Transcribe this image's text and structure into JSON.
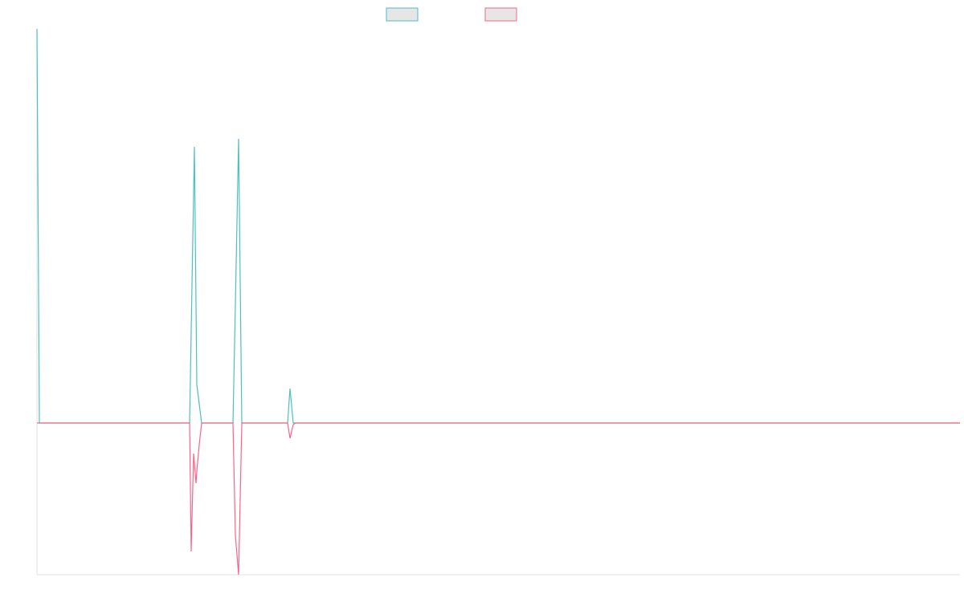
{
  "chart_data": {
    "type": "line",
    "x": [
      0,
      3,
      190,
      192,
      195,
      196,
      198,
      199,
      202,
      205,
      244,
      247,
      251,
      255,
      312,
      315,
      319,
      322,
      1149
    ],
    "series": [
      {
        "color": "#4bc0c0",
        "values": [
          491,
          0,
          0,
          115,
          287,
          344,
          147,
          48,
          24,
          0,
          0,
          148,
          354,
          0,
          0,
          43,
          0,
          0,
          0
        ]
      },
      {
        "color": "#ff6384",
        "values": [
          0,
          0,
          0,
          -160,
          -38,
          -50,
          -75,
          -60,
          -27,
          0,
          0,
          -140,
          -189,
          0,
          0,
          -19,
          -2,
          0,
          0
        ]
      }
    ],
    "xlim": [
      0,
      1149
    ],
    "ylim": [
      -189,
      491
    ]
  }
}
